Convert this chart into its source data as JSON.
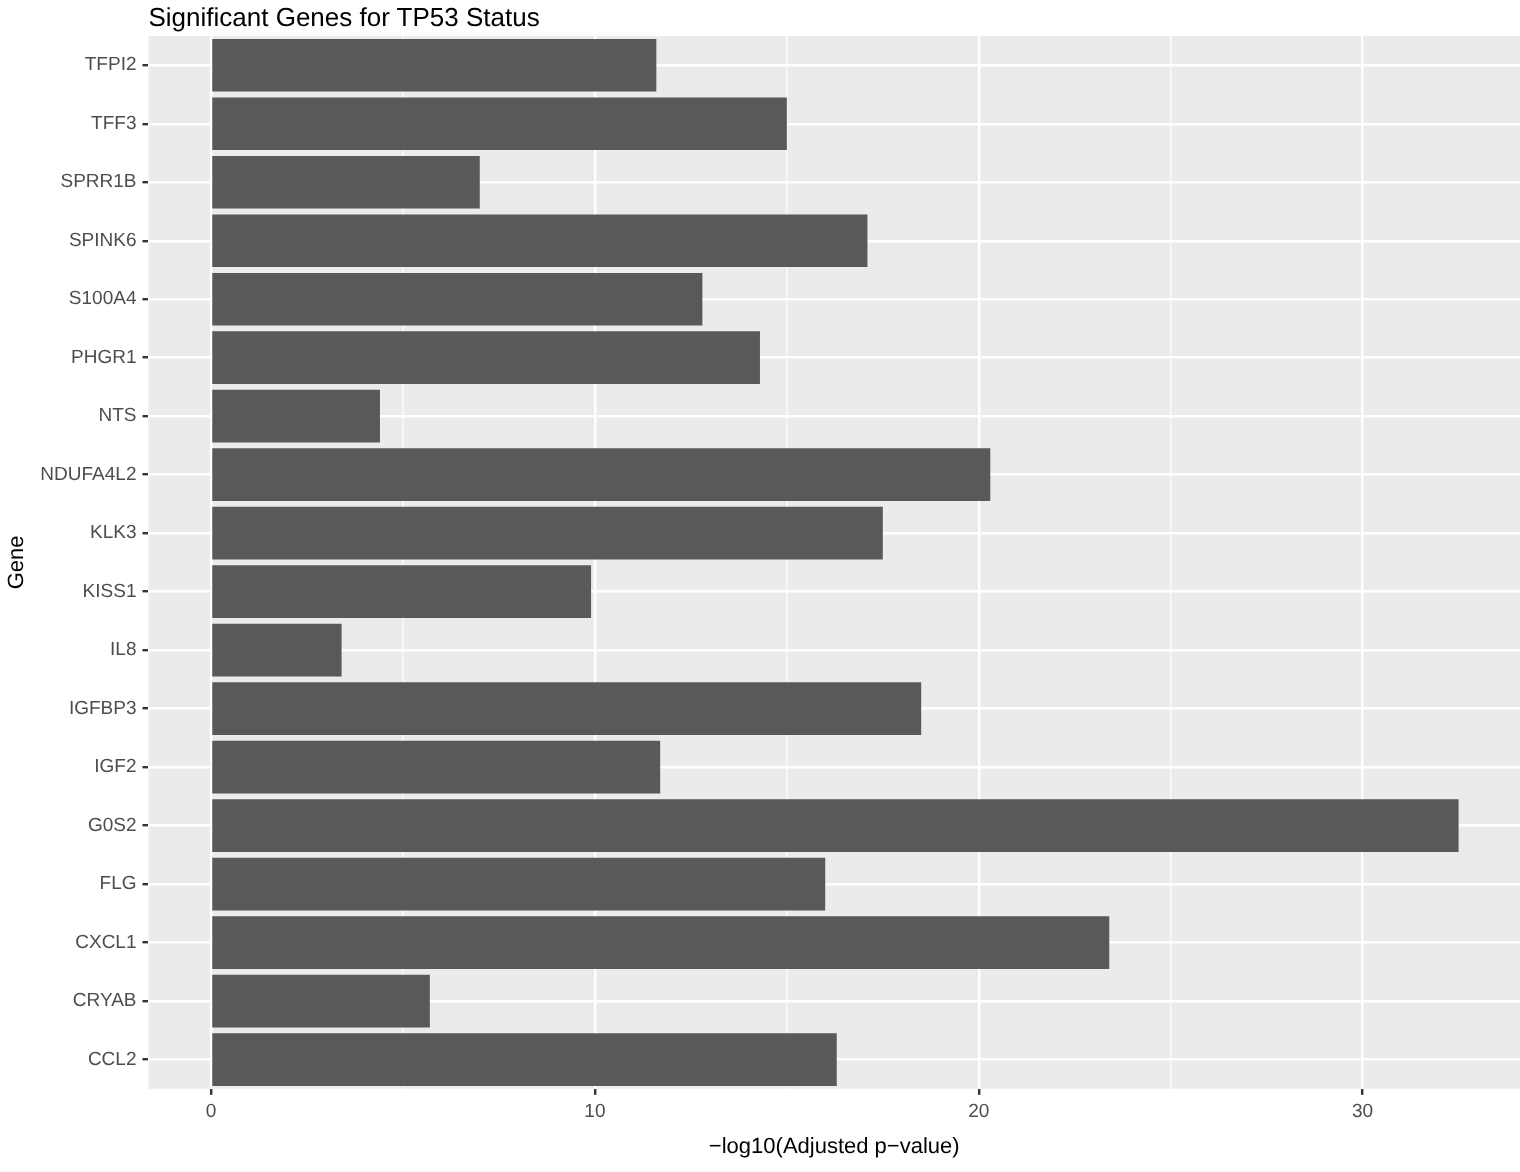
{
  "chart_data": {
    "type": "bar",
    "orientation": "horizontal",
    "title": "Significant Genes for TP53 Status",
    "xlabel": "−log10(Adjusted p−value)",
    "ylabel": "Gene",
    "categories": [
      "TFPI2",
      "TFF3",
      "SPRR1B",
      "SPINK6",
      "S100A4",
      "PHGR1",
      "NTS",
      "NDUFA4L2",
      "KLK3",
      "KISS1",
      "IL8",
      "IGFBP3",
      "IGF2",
      "G0S2",
      "FLG",
      "CXCL1",
      "CRYAB",
      "CCL2"
    ],
    "values": [
      11.6,
      15.0,
      7.0,
      17.1,
      12.8,
      14.3,
      4.4,
      20.3,
      17.5,
      9.9,
      3.4,
      18.5,
      11.7,
      32.5,
      16.0,
      23.4,
      5.7,
      16.3
    ],
    "color": "#595959",
    "xlim": [
      -1.63,
      34.1
    ],
    "xticks": [
      0,
      10,
      20,
      30
    ],
    "grid": true
  }
}
